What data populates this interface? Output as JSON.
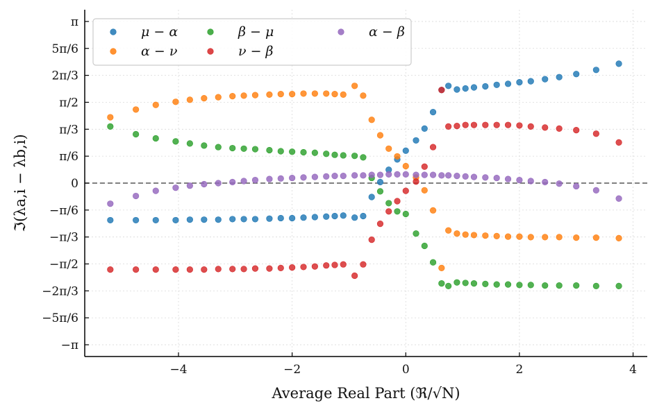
{
  "chart_data": {
    "type": "scatter",
    "xlabel": "Average Real Part (ℜ/√N)",
    "ylabel": "ℑ(λa,i − λb,i)",
    "xlim": [
      -5.65,
      4.25
    ],
    "ylim": [
      -3.37,
      3.37
    ],
    "grid": true,
    "legend_position": "top-left",
    "reference_line": {
      "y": 0,
      "style": "dashed"
    },
    "x_ticks": [
      {
        "value": -4,
        "label": "−4"
      },
      {
        "value": -2,
        "label": "−2"
      },
      {
        "value": 0,
        "label": "0"
      },
      {
        "value": 2,
        "label": "2"
      },
      {
        "value": 4,
        "label": "4"
      }
    ],
    "y_ticks": [
      {
        "value": 3.14159,
        "label": "π"
      },
      {
        "value": 2.61799,
        "label": "5π/6"
      },
      {
        "value": 2.0944,
        "label": "2π/3"
      },
      {
        "value": 1.5708,
        "label": "π/2"
      },
      {
        "value": 1.0472,
        "label": "π/3"
      },
      {
        "value": 0.5236,
        "label": "π/6"
      },
      {
        "value": 0,
        "label": "0"
      },
      {
        "value": -0.5236,
        "label": "−π/6"
      },
      {
        "value": -1.0472,
        "label": "−π/3"
      },
      {
        "value": -1.5708,
        "label": "−π/2"
      },
      {
        "value": -2.0944,
        "label": "−2π/3"
      },
      {
        "value": -2.61799,
        "label": "−5π/6"
      },
      {
        "value": -3.14159,
        "label": "−π"
      }
    ],
    "series": [
      {
        "name": "μ − α",
        "key": "mu-alpha",
        "color": "#1f77b4",
        "x": [
          -5.2,
          -4.75,
          -4.4,
          -4.05,
          -3.8,
          -3.55,
          -3.3,
          -3.05,
          -2.85,
          -2.65,
          -2.4,
          -2.2,
          -2.0,
          -1.8,
          -1.6,
          -1.4,
          -1.25,
          -1.1,
          -0.9,
          -0.75,
          -0.6,
          -0.45,
          -0.3,
          -0.15,
          0.0,
          0.18,
          0.33,
          0.48,
          0.63,
          0.75,
          0.9,
          1.05,
          1.2,
          1.4,
          1.6,
          1.8,
          2.0,
          2.2,
          2.45,
          2.7,
          3.0,
          3.35,
          3.75
        ],
        "y": [
          -0.72,
          -0.72,
          -0.72,
          -0.72,
          -0.71,
          -0.71,
          -0.71,
          -0.7,
          -0.7,
          -0.7,
          -0.69,
          -0.68,
          -0.68,
          -0.67,
          -0.66,
          -0.65,
          -0.64,
          -0.63,
          -0.67,
          -0.64,
          -0.27,
          0.02,
          0.26,
          0.46,
          0.63,
          0.83,
          1.06,
          1.38,
          1.81,
          1.89,
          1.82,
          1.84,
          1.86,
          1.88,
          1.91,
          1.93,
          1.96,
          1.98,
          2.02,
          2.06,
          2.12,
          2.2,
          2.32
        ]
      },
      {
        "name": "α − ν",
        "key": "alpha-nu",
        "color": "#ff7f0e",
        "x": [
          -5.2,
          -4.75,
          -4.4,
          -4.05,
          -3.8,
          -3.55,
          -3.3,
          -3.05,
          -2.85,
          -2.65,
          -2.4,
          -2.2,
          -2.0,
          -1.8,
          -1.6,
          -1.4,
          -1.25,
          -1.1,
          -0.9,
          -0.75,
          -0.6,
          -0.45,
          -0.3,
          -0.15,
          0.0,
          0.18,
          0.33,
          0.48,
          0.63,
          0.75,
          0.9,
          1.05,
          1.2,
          1.4,
          1.6,
          1.8,
          2.0,
          2.2,
          2.45,
          2.7,
          3.0,
          3.35,
          3.75
        ],
        "y": [
          1.28,
          1.43,
          1.52,
          1.58,
          1.62,
          1.65,
          1.67,
          1.69,
          1.7,
          1.71,
          1.72,
          1.73,
          1.73,
          1.74,
          1.74,
          1.74,
          1.73,
          1.72,
          1.89,
          1.7,
          1.23,
          0.93,
          0.67,
          0.52,
          0.33,
          0.11,
          -0.14,
          -0.53,
          -1.65,
          -0.92,
          -0.98,
          -1.0,
          -1.01,
          -1.02,
          -1.03,
          -1.04,
          -1.04,
          -1.05,
          -1.05,
          -1.05,
          -1.06,
          -1.06,
          -1.07
        ]
      },
      {
        "name": "β − μ",
        "key": "beta-mu",
        "color": "#2ca02c",
        "x": [
          -5.2,
          -4.75,
          -4.4,
          -4.05,
          -3.8,
          -3.55,
          -3.3,
          -3.05,
          -2.85,
          -2.65,
          -2.4,
          -2.2,
          -2.0,
          -1.8,
          -1.6,
          -1.4,
          -1.25,
          -1.1,
          -0.9,
          -0.75,
          -0.6,
          -0.45,
          -0.3,
          -0.15,
          0.0,
          0.18,
          0.33,
          0.48,
          0.63,
          0.75,
          0.9,
          1.05,
          1.2,
          1.4,
          1.6,
          1.8,
          2.0,
          2.2,
          2.45,
          2.7,
          3.0,
          3.35,
          3.75
        ],
        "y": [
          1.1,
          0.95,
          0.87,
          0.81,
          0.77,
          0.73,
          0.7,
          0.68,
          0.67,
          0.66,
          0.64,
          0.62,
          0.61,
          0.6,
          0.59,
          0.57,
          0.55,
          0.54,
          0.53,
          0.5,
          0.1,
          -0.16,
          -0.39,
          -0.55,
          -0.6,
          -0.98,
          -1.22,
          -1.54,
          -1.95,
          -2.0,
          -1.93,
          -1.94,
          -1.95,
          -1.96,
          -1.97,
          -1.97,
          -1.98,
          -1.98,
          -1.99,
          -1.99,
          -1.99,
          -2.0,
          -2.0
        ]
      },
      {
        "name": "ν − β",
        "key": "nu-beta",
        "color": "#d62728",
        "x": [
          -5.2,
          -4.75,
          -4.4,
          -4.05,
          -3.8,
          -3.55,
          -3.3,
          -3.05,
          -2.85,
          -2.65,
          -2.4,
          -2.2,
          -2.0,
          -1.8,
          -1.6,
          -1.4,
          -1.25,
          -1.1,
          -0.9,
          -0.75,
          -0.6,
          -0.45,
          -0.3,
          -0.15,
          0.0,
          0.18,
          0.33,
          0.48,
          0.63,
          0.75,
          0.9,
          1.05,
          1.2,
          1.4,
          1.6,
          1.8,
          2.0,
          2.2,
          2.45,
          2.7,
          3.0,
          3.35,
          3.75
        ],
        "y": [
          -1.68,
          -1.68,
          -1.68,
          -1.68,
          -1.68,
          -1.68,
          -1.67,
          -1.67,
          -1.67,
          -1.66,
          -1.66,
          -1.65,
          -1.64,
          -1.63,
          -1.62,
          -1.6,
          -1.59,
          -1.58,
          -1.8,
          -1.58,
          -1.1,
          -0.79,
          -0.55,
          -0.35,
          -0.15,
          0.03,
          0.32,
          0.7,
          1.81,
          1.1,
          1.11,
          1.13,
          1.13,
          1.13,
          1.13,
          1.13,
          1.12,
          1.1,
          1.08,
          1.06,
          1.03,
          0.96,
          0.79
        ]
      },
      {
        "name": "α − β",
        "key": "alpha-beta",
        "color": "#9467bd",
        "x": [
          -5.2,
          -4.75,
          -4.4,
          -4.05,
          -3.8,
          -3.55,
          -3.3,
          -3.05,
          -2.85,
          -2.65,
          -2.4,
          -2.2,
          -2.0,
          -1.8,
          -1.6,
          -1.4,
          -1.25,
          -1.1,
          -0.9,
          -0.75,
          -0.6,
          -0.45,
          -0.3,
          -0.15,
          0.0,
          0.18,
          0.33,
          0.48,
          0.63,
          0.75,
          0.9,
          1.05,
          1.2,
          1.4,
          1.6,
          1.8,
          2.0,
          2.2,
          2.45,
          2.7,
          3.0,
          3.35,
          3.75
        ],
        "y": [
          -0.4,
          -0.25,
          -0.15,
          -0.09,
          -0.05,
          -0.02,
          0.0,
          0.02,
          0.04,
          0.06,
          0.08,
          0.09,
          0.1,
          0.11,
          0.12,
          0.13,
          0.14,
          0.14,
          0.15,
          0.15,
          0.16,
          0.16,
          0.17,
          0.17,
          0.17,
          0.16,
          0.16,
          0.16,
          0.15,
          0.15,
          0.14,
          0.13,
          0.12,
          0.11,
          0.1,
          0.08,
          0.06,
          0.04,
          0.02,
          -0.01,
          -0.06,
          -0.14,
          -0.3
        ]
      }
    ]
  }
}
